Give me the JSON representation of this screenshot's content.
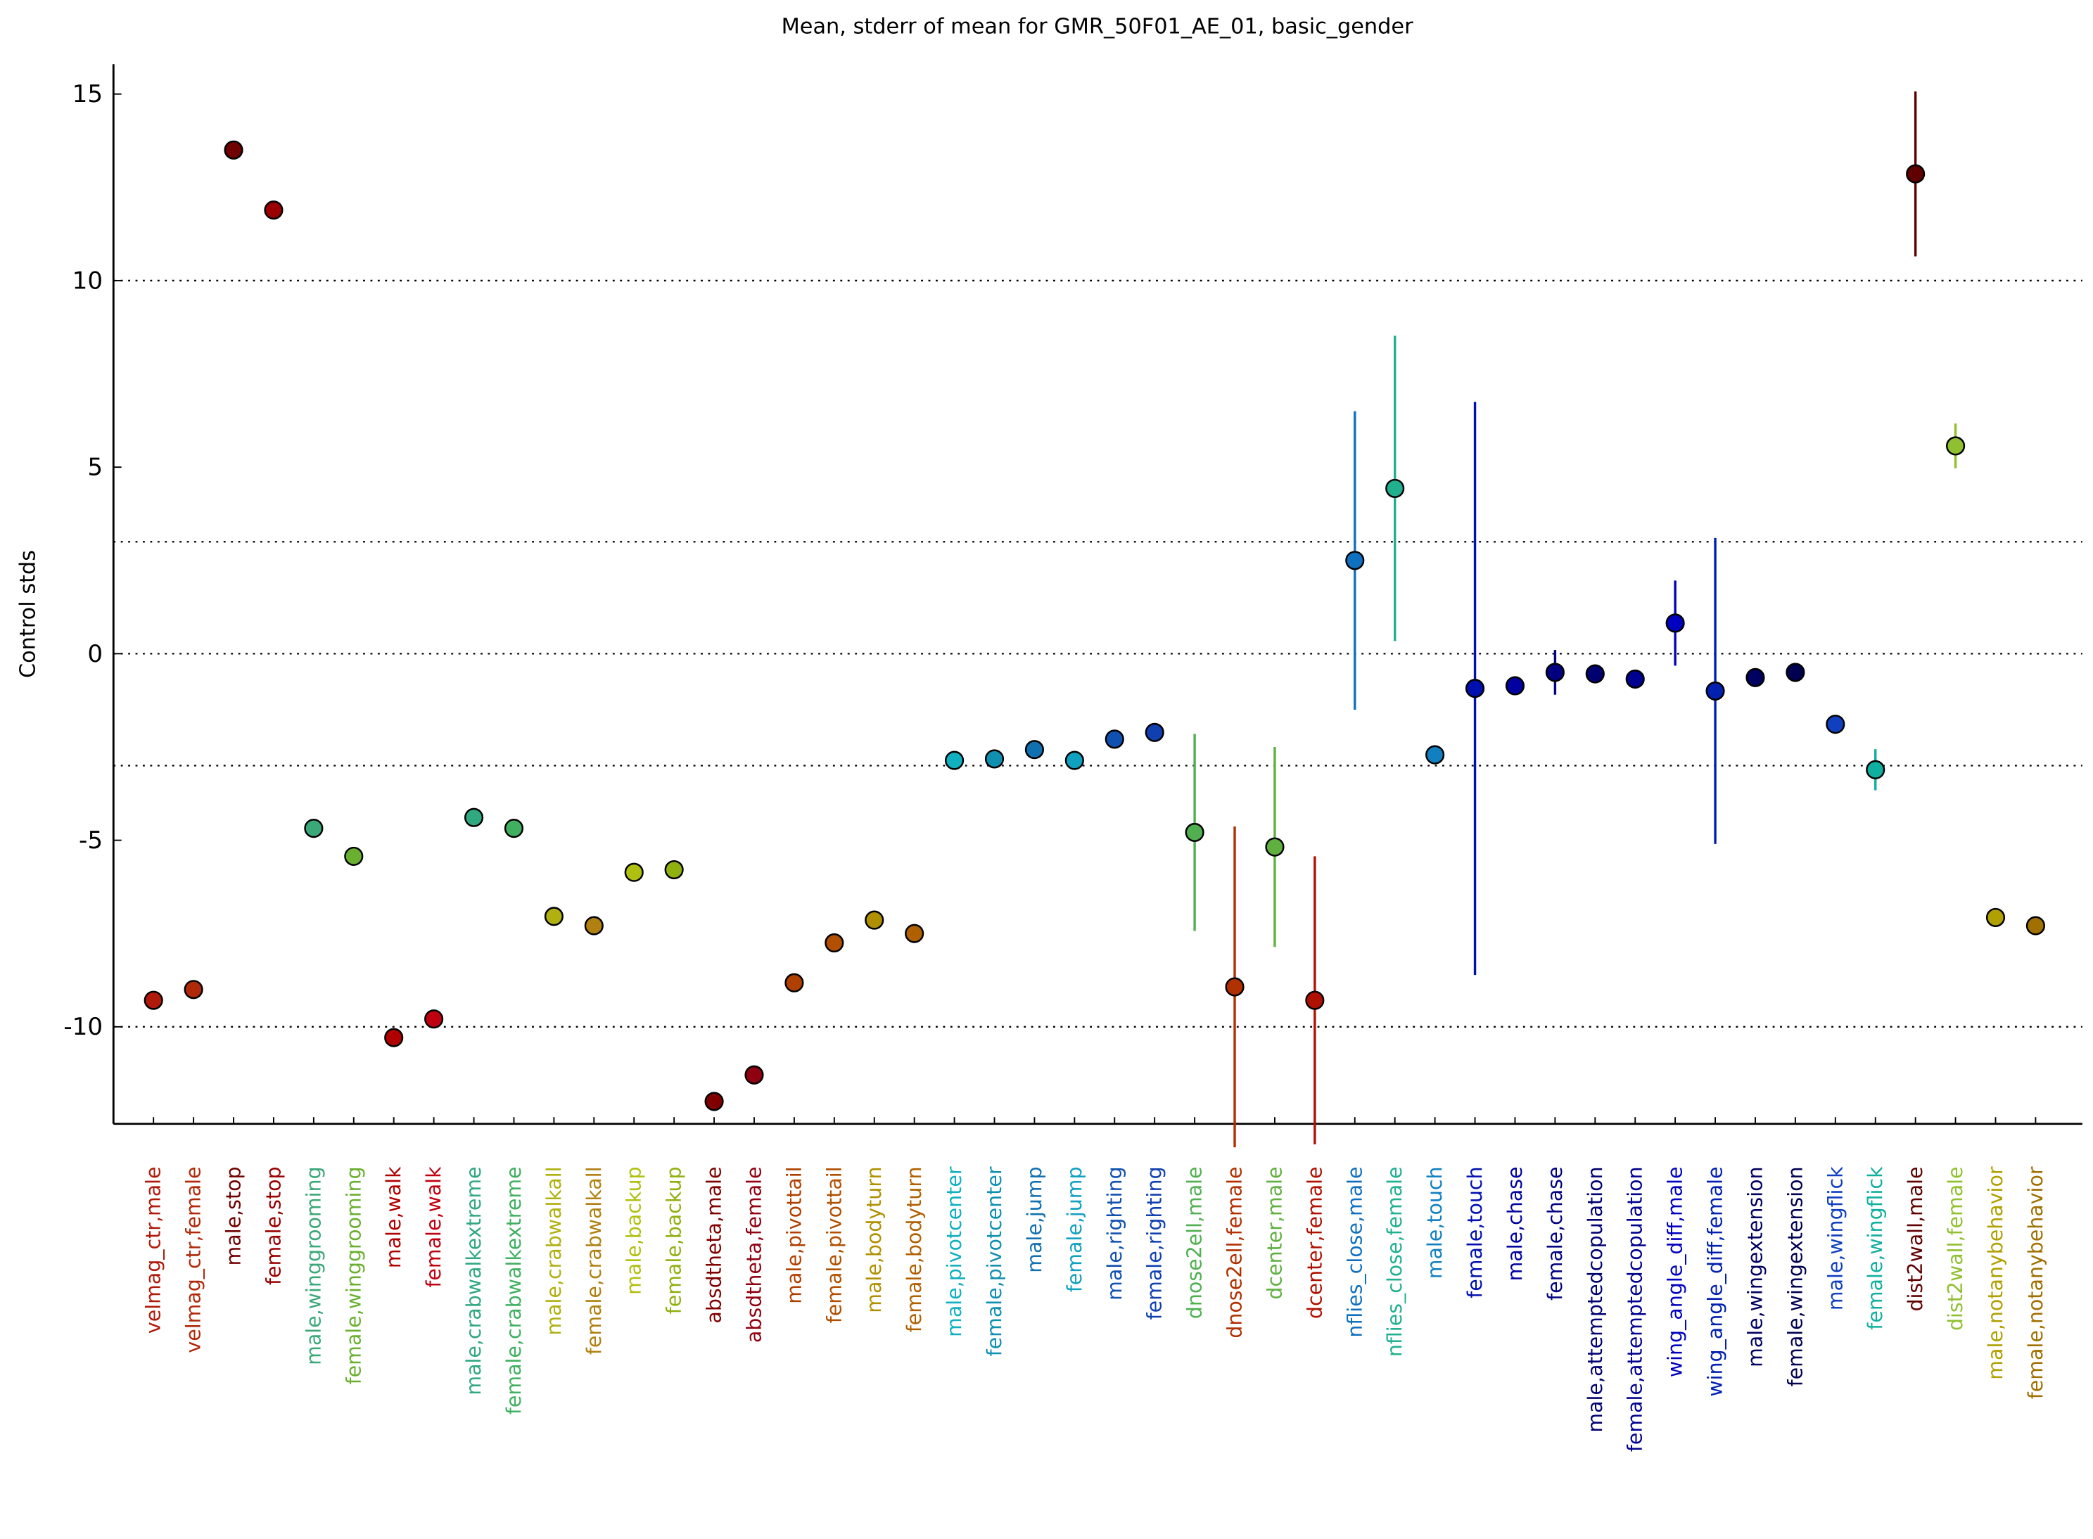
{
  "chart_data": {
    "type": "errorbar",
    "title": "Mean, stderr of mean for GMR_50F01_AE_01, basic_gender",
    "y_label": "Control stds",
    "categories": [
      "velmag_ctr,male",
      "velmag_ctr,female",
      "male,stop",
      "female,stop",
      "male,winggrooming",
      "female,winggrooming",
      "male,walk",
      "female,walk",
      "male,crabwalkextreme",
      "female,crabwalkextreme",
      "male,crabwalkall",
      "female,crabwalkall",
      "male,backup",
      "female,backup",
      "absdtheta,male",
      "absdtheta,female",
      "male,pivottail",
      "female,pivottail",
      "male,bodyturn",
      "female,bodyturn",
      "male,pivotcenter",
      "female,pivotcenter",
      "male,jump",
      "female,jump",
      "male,righting",
      "female,righting",
      "dnose2ell,male",
      "dnose2ell,female",
      "dcenter,male",
      "dcenter,female",
      "nflies_close,male",
      "nflies_close,female",
      "male,touch",
      "female,touch",
      "male,chase",
      "female,chase",
      "male,attemptedcopulation",
      "female,attemptedcopulation",
      "wing_angle_diff,male",
      "wing_angle_diff,female",
      "male,wingextension",
      "female,wingextension",
      "male,wingflick",
      "female,wingflick",
      "dist2wall,male",
      "dist2wall,female",
      "male,notanybehavior",
      "female,notanybehavior"
    ],
    "values": [
      -9.29,
      -9.0,
      13.5,
      11.89,
      -4.68,
      -5.43,
      -10.29,
      -9.79,
      -4.39,
      -4.68,
      -7.04,
      -7.29,
      -5.86,
      -5.79,
      -12.0,
      -11.29,
      -8.82,
      -7.75,
      -7.14,
      -7.5,
      -2.86,
      -2.82,
      -2.57,
      -2.86,
      -2.29,
      -2.11,
      -4.79,
      -8.93,
      -5.18,
      -9.29,
      2.5,
      4.43,
      -2.71,
      -0.93,
      -0.86,
      -0.5,
      -0.54,
      -0.68,
      0.82,
      -1.0,
      -0.64,
      -0.5,
      -1.89,
      -3.11,
      12.86,
      5.57,
      -7.07,
      -7.29
    ],
    "errors": [
      null,
      null,
      null,
      null,
      null,
      null,
      null,
      null,
      null,
      null,
      null,
      null,
      null,
      null,
      null,
      null,
      null,
      null,
      null,
      null,
      null,
      null,
      null,
      null,
      null,
      null,
      2.64,
      4.3,
      2.68,
      3.86,
      4.0,
      4.09,
      null,
      7.68,
      null,
      0.6,
      null,
      null,
      1.14,
      4.1,
      null,
      null,
      null,
      0.55,
      2.21,
      0.6,
      null,
      null
    ],
    "colors": [
      "#b01a0a",
      "#b02a0a",
      "#700000",
      "#9a0000",
      "#3aa878",
      "#6ab030",
      "#b00000",
      "#c00010",
      "#30a880",
      "#40b060",
      "#b0b010",
      "#b08010",
      "#b0c010",
      "#90b010",
      "#800000",
      "#900010",
      "#b04000",
      "#b05000",
      "#b09000",
      "#b06000",
      "#10b0c0",
      "#1090b0",
      "#1070b0",
      "#10a0c0",
      "#1050b0",
      "#1040b0",
      "#50b050",
      "#b03000",
      "#60b040",
      "#b01000",
      "#1070c0",
      "#20b090",
      "#1080c0",
      "#0010b0",
      "#0000a0",
      "#000080",
      "#000070",
      "#000090",
      "#0000c0",
      "#0020b0",
      "#000060",
      "#000050",
      "#1040c0",
      "#10b0a0",
      "#600000",
      "#90c030",
      "#b0a000",
      "#a07000"
    ],
    "ylim": [
      -12.6,
      15.8
    ],
    "yticks": [
      -10,
      -5,
      0,
      5,
      10,
      15
    ],
    "hlines": [
      10,
      3,
      0,
      -3,
      -10
    ]
  }
}
